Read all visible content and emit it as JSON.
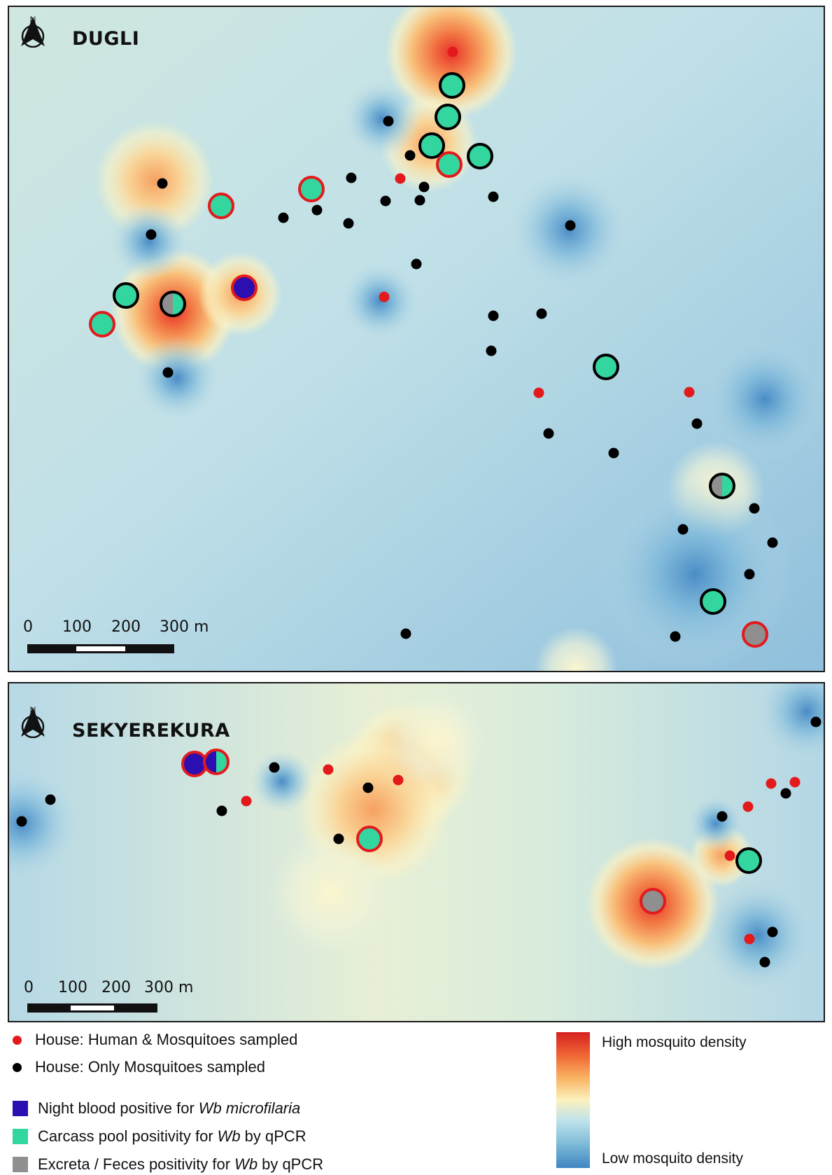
{
  "colors": {
    "house_human_mosquito": "#e31a1c",
    "house_mosquito_only": "#000000",
    "night_blood_positive": "#2b0fb0",
    "carcass_pool_positive": "#34d6a0",
    "excreta_positive": "#8f8f8f",
    "density_high": "#d62020",
    "density_low": "#3f86c2"
  },
  "panels": [
    {
      "id": "dugli",
      "title": "DUGLI",
      "north_label": "N",
      "scale": {
        "ticks": [
          "0",
          "100",
          "200",
          "300 m"
        ]
      }
    },
    {
      "id": "sekyerekura",
      "title": "SEKYEREKURA",
      "north_label": "N",
      "scale": {
        "ticks": [
          "0",
          "100",
          "200",
          "300 m"
        ]
      }
    }
  ],
  "legend": {
    "house_human": "House: Human & Mosquitoes sampled",
    "house_mosq": "House: Only Mosquitoes sampled",
    "night_blood_prefix": "Night blood positive for",
    "night_blood_italic": "Wb microfilaria",
    "carcass_prefix": "Carcass pool positivity for",
    "carcass_italic": "Wb",
    "carcass_suffix": "by qPCR",
    "excreta_prefix": "Excreta / Feces positivity for",
    "excreta_italic": "Wb",
    "excreta_suffix": "by qPCR",
    "density_high": "High mosquito density",
    "density_low": "Low mosquito density"
  }
}
